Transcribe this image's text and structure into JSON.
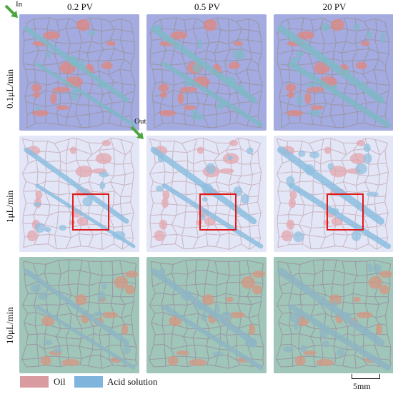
{
  "columns": [
    "0.2 PV",
    "0.5 PV",
    "20 PV"
  ],
  "rows": [
    "0.1μL/min",
    "1μL/min",
    "10μL/min"
  ],
  "markers": {
    "inlet": "In",
    "outlet": "Out"
  },
  "legend": [
    {
      "label": "Oil",
      "color": "#d99aa0"
    },
    {
      "label": "Acid solution",
      "color": "#7fb4dc"
    }
  ],
  "scale_bar": "5mm",
  "colors": {
    "row_bg": [
      "#a3abe0",
      "#e3e6f6",
      "#9fc6b8"
    ],
    "row_oil": [
      "#e0877e",
      "#e3a5ad",
      "#d69582"
    ],
    "row_acid": [
      "#7fb9c6",
      "#8dbfe0",
      "#8eb5c4"
    ],
    "highlight_box": "#e01b1b",
    "arrow": "#4ca63c"
  },
  "highlight_rows": [
    1
  ]
}
